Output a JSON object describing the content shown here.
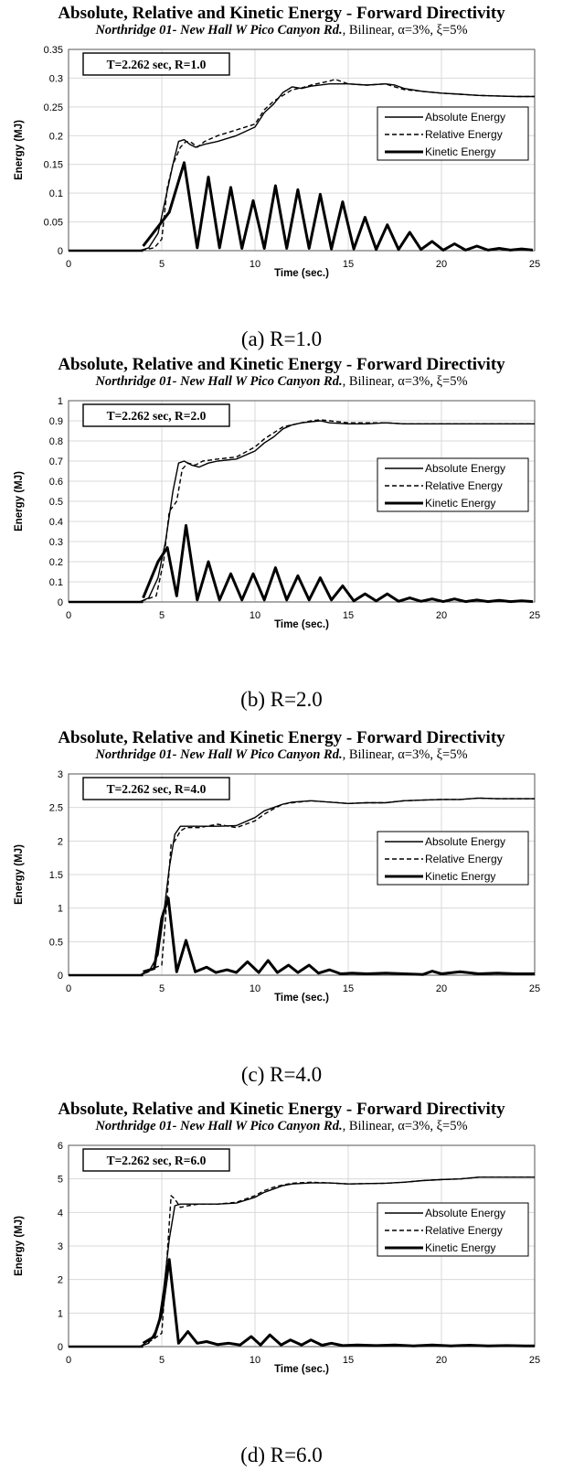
{
  "chart_data": [
    {
      "type": "line",
      "title": "Absolute, Relative and Kinetic Energy  - Forward Directivity",
      "subtitle": {
        "record": "Northridge 01- New Hall W Pico Canyon Rd.",
        "model": ", Bilinear, α=3%, ξ=5%"
      },
      "annotation": "T=2.262 sec, R=1.0",
      "caption": "(a) R=1.0",
      "xlabel": "Time (sec.)",
      "ylabel": "Energy (MJ)",
      "xlim": [
        0,
        25
      ],
      "ylim": [
        0,
        0.35
      ],
      "xticks": [
        "0",
        "5",
        "10",
        "15",
        "20",
        "25"
      ],
      "yticks": [
        "0",
        "0.05",
        "0.1",
        "0.15",
        "0.2",
        "0.25",
        "0.3",
        "0.35"
      ],
      "legend": [
        "Absolute Energy",
        "Relative Energy",
        "Kinetic Energy"
      ],
      "legend_position": "right",
      "grid": true,
      "series": [
        {
          "name": "Absolute Energy",
          "x": [
            0,
            3.8,
            4.3,
            4.8,
            5.2,
            5.6,
            5.9,
            6.2,
            6.5,
            6.8,
            7.3,
            8,
            9,
            10,
            10.5,
            11,
            11.5,
            12,
            12.5,
            13,
            14,
            15,
            16,
            17,
            17.5,
            18,
            19,
            20,
            21,
            22,
            23,
            24,
            25
          ],
          "y": [
            0,
            0,
            0.005,
            0.03,
            0.09,
            0.15,
            0.19,
            0.193,
            0.185,
            0.18,
            0.185,
            0.19,
            0.2,
            0.215,
            0.24,
            0.255,
            0.275,
            0.285,
            0.282,
            0.286,
            0.29,
            0.29,
            0.288,
            0.29,
            0.288,
            0.282,
            0.277,
            0.274,
            0.272,
            0.27,
            0.269,
            0.268,
            0.268
          ]
        },
        {
          "name": "Relative Energy",
          "x": [
            0,
            3.8,
            4.6,
            5,
            5.3,
            5.6,
            6,
            6.3,
            6.6,
            6.9,
            7.3,
            8,
            9,
            10,
            10.5,
            11,
            11.5,
            12,
            12.5,
            13,
            14,
            14.3,
            15,
            16,
            17,
            17.5,
            18,
            19,
            20,
            21,
            22,
            23,
            24,
            25
          ],
          "y": [
            0,
            0,
            0.005,
            0.02,
            0.11,
            0.15,
            0.18,
            0.19,
            0.188,
            0.18,
            0.19,
            0.2,
            0.21,
            0.22,
            0.245,
            0.26,
            0.27,
            0.28,
            0.283,
            0.288,
            0.295,
            0.298,
            0.29,
            0.288,
            0.29,
            0.285,
            0.28,
            0.277,
            0.274,
            0.272,
            0.27,
            0.269,
            0.268,
            0.268
          ]
        },
        {
          "name": "Kinetic Energy",
          "x": [
            4,
            5.4,
            6.2,
            6.9,
            7.5,
            8.1,
            8.7,
            9.3,
            9.9,
            10.5,
            11.1,
            11.7,
            12.3,
            12.9,
            13.5,
            14.1,
            14.7,
            15.3,
            15.9,
            16.5,
            17.1,
            17.7,
            18.3,
            18.9,
            19.5,
            20.1,
            20.7,
            21.3,
            21.9,
            22.5,
            23.1,
            23.7,
            24.3,
            24.9
          ],
          "y": [
            0.008,
            0.067,
            0.153,
            0.005,
            0.128,
            0.005,
            0.11,
            0.004,
            0.087,
            0.004,
            0.113,
            0.004,
            0.106,
            0.004,
            0.098,
            0.003,
            0.085,
            0.003,
            0.058,
            0.002,
            0.045,
            0.002,
            0.032,
            0.002,
            0.016,
            0.001,
            0.012,
            0.001,
            0.008,
            0.001,
            0.004,
            0.001,
            0.003,
            0.001
          ]
        }
      ]
    },
    {
      "type": "line",
      "title": "Absolute, Relative and Kinetic Energy  - Forward Directivity",
      "subtitle": {
        "record": "Northridge 01- New Hall W Pico Canyon Rd.",
        "model": ", Bilinear, α=3%, ξ=5%"
      },
      "annotation": "T=2.262 sec, R=2.0",
      "caption": "(b) R=2.0",
      "xlabel": "Time (sec.)",
      "ylabel": "Energy (MJ)",
      "xlim": [
        0,
        25
      ],
      "ylim": [
        0,
        1
      ],
      "xticks": [
        "0",
        "5",
        "10",
        "15",
        "20",
        "25"
      ],
      "yticks": [
        "0",
        "0.1",
        "0.2",
        "0.3",
        "0.4",
        "0.5",
        "0.6",
        "0.7",
        "0.8",
        "0.9",
        "1"
      ],
      "legend": [
        "Absolute Energy",
        "Relative Energy",
        "Kinetic Energy"
      ],
      "legend_position": "right",
      "grid": true,
      "series": [
        {
          "name": "Absolute Energy",
          "x": [
            0,
            3.8,
            4.3,
            4.8,
            5.2,
            5.6,
            5.9,
            6.2,
            6.6,
            7,
            7.5,
            8,
            9,
            10,
            10.5,
            11,
            11.5,
            12,
            12.5,
            13,
            13.5,
            14,
            15,
            16,
            17,
            18,
            19,
            20,
            21,
            22,
            23,
            24,
            25
          ],
          "y": [
            0,
            0,
            0.02,
            0.12,
            0.3,
            0.55,
            0.69,
            0.7,
            0.68,
            0.67,
            0.69,
            0.7,
            0.71,
            0.75,
            0.79,
            0.82,
            0.86,
            0.88,
            0.89,
            0.895,
            0.9,
            0.89,
            0.885,
            0.885,
            0.89,
            0.885,
            0.885,
            0.885,
            0.885,
            0.885,
            0.885,
            0.885,
            0.885
          ]
        },
        {
          "name": "Relative Energy",
          "x": [
            0,
            3.8,
            4.7,
            5.1,
            5.4,
            5.8,
            6.1,
            6.4,
            6.8,
            7.2,
            8,
            9,
            10,
            10.5,
            11,
            11.5,
            12,
            12.5,
            13,
            13.5,
            14,
            15,
            16,
            17,
            18,
            19,
            20,
            21,
            22,
            23,
            24,
            25
          ],
          "y": [
            0,
            0,
            0.03,
            0.2,
            0.45,
            0.5,
            0.66,
            0.69,
            0.68,
            0.7,
            0.71,
            0.72,
            0.77,
            0.81,
            0.84,
            0.87,
            0.88,
            0.89,
            0.9,
            0.905,
            0.9,
            0.89,
            0.89,
            0.89,
            0.885,
            0.885,
            0.885,
            0.885,
            0.885,
            0.885,
            0.885,
            0.885
          ]
        },
        {
          "name": "Kinetic Energy",
          "x": [
            4,
            4.8,
            5.3,
            5.8,
            6.3,
            6.9,
            7.5,
            8.1,
            8.7,
            9.3,
            9.9,
            10.5,
            11.1,
            11.7,
            12.3,
            12.9,
            13.5,
            14.1,
            14.7,
            15.3,
            15.9,
            16.5,
            17.1,
            17.7,
            18.3,
            18.9,
            19.5,
            20.1,
            20.7,
            21.3,
            21.9,
            22.5,
            23.1,
            23.7,
            24.3,
            24.9
          ],
          "y": [
            0.02,
            0.2,
            0.27,
            0.03,
            0.38,
            0.01,
            0.2,
            0.01,
            0.14,
            0.01,
            0.14,
            0.01,
            0.17,
            0.01,
            0.13,
            0.01,
            0.12,
            0.01,
            0.08,
            0.005,
            0.04,
            0.005,
            0.04,
            0.003,
            0.02,
            0.003,
            0.015,
            0.002,
            0.015,
            0.002,
            0.01,
            0.002,
            0.008,
            0.002,
            0.006,
            0.002
          ]
        }
      ]
    },
    {
      "type": "line",
      "title": "Absolute, Relative and Kinetic Energy  - Forward Directivity",
      "subtitle": {
        "record": "Northridge 01- New Hall W Pico Canyon Rd.",
        "model": ", Bilinear, α=3%, ξ=5%"
      },
      "annotation": "T=2.262 sec, R=4.0",
      "caption": "(c) R=4.0",
      "xlabel": "Time (sec.)",
      "ylabel": "Energy (MJ)",
      "xlim": [
        0,
        25
      ],
      "ylim": [
        0,
        3
      ],
      "xticks": [
        "0",
        "5",
        "10",
        "15",
        "20",
        "25"
      ],
      "yticks": [
        "0",
        "0.5",
        "1",
        "1.5",
        "2",
        "2.5",
        "3"
      ],
      "legend": [
        "Absolute Energy",
        "Relative Energy",
        "Kinetic Energy"
      ],
      "legend_position": "right",
      "grid": true,
      "series": [
        {
          "name": "Absolute Energy",
          "x": [
            0,
            3.8,
            4.3,
            4.8,
            5.1,
            5.4,
            5.7,
            6,
            6.5,
            7,
            8,
            9,
            10,
            10.5,
            11,
            11.5,
            12,
            13,
            14,
            15,
            16,
            17,
            18,
            19,
            20,
            21,
            22,
            23,
            24,
            25
          ],
          "y": [
            0,
            0,
            0.05,
            0.3,
            0.9,
            1.6,
            2.1,
            2.22,
            2.22,
            2.22,
            2.22,
            2.23,
            2.35,
            2.45,
            2.5,
            2.55,
            2.58,
            2.6,
            2.58,
            2.56,
            2.57,
            2.57,
            2.6,
            2.61,
            2.62,
            2.62,
            2.64,
            2.63,
            2.63,
            2.63
          ]
        },
        {
          "name": "Relative Energy",
          "x": [
            0,
            3.8,
            4.5,
            5,
            5.3,
            5.5,
            5.7,
            6,
            6.3,
            7,
            8,
            9,
            10,
            10.5,
            11,
            11.5,
            12,
            13,
            14,
            15,
            16,
            17,
            18,
            19,
            20,
            21,
            22,
            23,
            24,
            25
          ],
          "y": [
            0,
            0,
            0.1,
            0.15,
            1.2,
            1.95,
            2.0,
            2.15,
            2.2,
            2.2,
            2.25,
            2.2,
            2.3,
            2.4,
            2.48,
            2.55,
            2.57,
            2.6,
            2.58,
            2.56,
            2.57,
            2.57,
            2.6,
            2.61,
            2.62,
            2.62,
            2.64,
            2.63,
            2.63,
            2.63
          ]
        },
        {
          "name": "Kinetic Energy",
          "x": [
            4,
            4.6,
            5,
            5.35,
            5.8,
            6.3,
            6.8,
            7.4,
            7.9,
            8.5,
            9,
            9.6,
            10.2,
            10.7,
            11.2,
            11.8,
            12.3,
            12.9,
            13.4,
            14,
            14.6,
            15.2,
            16,
            17,
            18,
            19,
            19.5,
            20,
            21,
            22,
            23,
            24,
            25
          ],
          "y": [
            0.05,
            0.1,
            0.85,
            1.15,
            0.05,
            0.52,
            0.05,
            0.12,
            0.04,
            0.08,
            0.04,
            0.2,
            0.04,
            0.22,
            0.04,
            0.15,
            0.04,
            0.15,
            0.03,
            0.08,
            0.02,
            0.03,
            0.02,
            0.03,
            0.02,
            0.01,
            0.06,
            0.02,
            0.05,
            0.02,
            0.03,
            0.02,
            0.02
          ]
        }
      ]
    },
    {
      "type": "line",
      "title": "Absolute, Relative and Kinetic Energy  - Forward Directivity",
      "subtitle": {
        "record": "Northridge 01- New Hall W Pico Canyon Rd.",
        "model": ", Bilinear, α=3%, ξ=5%"
      },
      "annotation": "T=2.262 sec, R=6.0",
      "caption": "(d) R=6.0",
      "xlabel": "Time (sec.)",
      "ylabel": "Energy (MJ)",
      "xlim": [
        0,
        25
      ],
      "ylim": [
        0,
        6
      ],
      "xticks": [
        "0",
        "5",
        "10",
        "15",
        "20",
        "25"
      ],
      "yticks": [
        "0",
        "1",
        "2",
        "3",
        "4",
        "5",
        "6"
      ],
      "legend": [
        "Absolute Energy",
        "Relative Energy",
        "Kinetic Energy"
      ],
      "legend_position": "right",
      "grid": true,
      "series": [
        {
          "name": "Absolute Energy",
          "x": [
            0,
            3.8,
            4.3,
            4.8,
            5.1,
            5.4,
            5.7,
            6,
            6.5,
            7,
            8,
            9,
            10,
            10.5,
            11,
            11.5,
            12,
            13,
            14,
            15,
            16,
            17,
            18,
            19,
            20,
            21,
            22,
            23,
            24,
            25
          ],
          "y": [
            0,
            0,
            0.1,
            0.6,
            1.7,
            3.2,
            4.2,
            4.25,
            4.25,
            4.25,
            4.25,
            4.28,
            4.45,
            4.6,
            4.7,
            4.8,
            4.85,
            4.88,
            4.88,
            4.85,
            4.86,
            4.87,
            4.9,
            4.95,
            4.98,
            5.0,
            5.05,
            5.05,
            5.05,
            5.05
          ]
        },
        {
          "name": "Relative Energy",
          "x": [
            0,
            3.8,
            4.5,
            5,
            5.3,
            5.5,
            5.7,
            6,
            6.4,
            7,
            8,
            9,
            10,
            10.5,
            11,
            11.5,
            12,
            13,
            14,
            15,
            16,
            17,
            18,
            19,
            20,
            21,
            22,
            23,
            24,
            25
          ],
          "y": [
            0,
            0,
            0.2,
            0.4,
            2.8,
            4.5,
            4.4,
            4.15,
            4.2,
            4.25,
            4.25,
            4.3,
            4.5,
            4.65,
            4.75,
            4.82,
            4.87,
            4.9,
            4.88,
            4.85,
            4.86,
            4.87,
            4.9,
            4.95,
            4.98,
            5.0,
            5.05,
            5.05,
            5.05,
            5.05
          ]
        },
        {
          "name": "Kinetic Energy",
          "x": [
            4,
            4.6,
            5,
            5.4,
            5.9,
            6.4,
            6.9,
            7.4,
            8,
            8.6,
            9.2,
            9.8,
            10.3,
            10.8,
            11.4,
            11.9,
            12.5,
            13,
            13.6,
            14.1,
            14.7,
            15.5,
            16.5,
            17.5,
            18.5,
            19.5,
            20.5,
            21.5,
            22.5,
            23.5,
            24.5,
            25
          ],
          "y": [
            0.1,
            0.3,
            1.0,
            2.6,
            0.1,
            0.45,
            0.1,
            0.15,
            0.06,
            0.1,
            0.05,
            0.3,
            0.05,
            0.35,
            0.05,
            0.2,
            0.05,
            0.2,
            0.04,
            0.1,
            0.03,
            0.05,
            0.03,
            0.05,
            0.02,
            0.05,
            0.02,
            0.04,
            0.02,
            0.03,
            0.02,
            0.02
          ]
        }
      ]
    }
  ]
}
